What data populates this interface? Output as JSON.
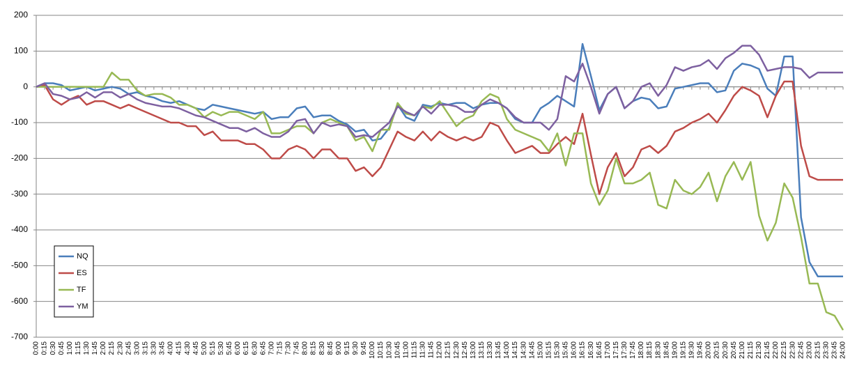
{
  "chart_data": {
    "type": "line",
    "categories": [
      "0:00",
      "0:15",
      "0:30",
      "0:45",
      "1:00",
      "1:15",
      "1:30",
      "1:45",
      "2:00",
      "2:15",
      "2:30",
      "2:45",
      "3:00",
      "3:15",
      "3:30",
      "3:45",
      "4:00",
      "4:15",
      "4:30",
      "4:45",
      "5:00",
      "5:15",
      "5:30",
      "5:45",
      "6:00",
      "6:15",
      "6:30",
      "6:45",
      "7:00",
      "7:15",
      "7:30",
      "7:45",
      "8:00",
      "8:15",
      "8:30",
      "8:45",
      "9:00",
      "9:15",
      "9:30",
      "9:45",
      "10:00",
      "10:15",
      "10:30",
      "10:45",
      "11:00",
      "11:15",
      "11:30",
      "11:45",
      "12:00",
      "12:15",
      "12:30",
      "12:45",
      "13:00",
      "13:15",
      "13:30",
      "13:45",
      "14:00",
      "14:15",
      "14:30",
      "14:45",
      "15:00",
      "15:15",
      "15:30",
      "15:45",
      "16:00",
      "16:15",
      "16:30",
      "16:45",
      "17:00",
      "17:15",
      "17:30",
      "17:45",
      "18:00",
      "18:15",
      "18:30",
      "18:45",
      "19:00",
      "19:15",
      "19:30",
      "19:45",
      "20:00",
      "20:15",
      "20:30",
      "20:45",
      "21:00",
      "21:15",
      "21:30",
      "21:45",
      "22:00",
      "22:15",
      "22:30",
      "22:45",
      "23:00",
      "23:15",
      "23:30",
      "23:45",
      "24:00"
    ],
    "series": [
      {
        "name": "NQ",
        "color": "#4a7ebb",
        "values": [
          0,
          10,
          10,
          5,
          -10,
          -5,
          0,
          -10,
          -5,
          0,
          -5,
          -20,
          -15,
          -25,
          -30,
          -40,
          -45,
          -40,
          -50,
          -60,
          -65,
          -50,
          -55,
          -60,
          -65,
          -70,
          -75,
          -70,
          -90,
          -85,
          -85,
          -60,
          -55,
          -85,
          -80,
          -80,
          -95,
          -105,
          -125,
          -120,
          -150,
          -145,
          -115,
          -50,
          -85,
          -95,
          -50,
          -55,
          -45,
          -50,
          -45,
          -45,
          -60,
          -50,
          -45,
          -45,
          -60,
          -90,
          -100,
          -100,
          -60,
          -45,
          -25,
          -40,
          -55,
          120,
          30,
          -65,
          -20,
          0,
          -60,
          -40,
          -30,
          -35,
          -60,
          -55,
          -5,
          0,
          5,
          10,
          10,
          -15,
          -10,
          45,
          65,
          60,
          50,
          -5,
          -25,
          85,
          85,
          -365,
          -490,
          -530,
          -530,
          -530,
          -530
        ]
      },
      {
        "name": "ES",
        "color": "#be4b48",
        "values": [
          0,
          5,
          -35,
          -50,
          -35,
          -25,
          -50,
          -40,
          -40,
          -50,
          -60,
          -50,
          -60,
          -70,
          -80,
          -90,
          -100,
          -100,
          -110,
          -110,
          -135,
          -125,
          -150,
          -150,
          -150,
          -160,
          -160,
          -175,
          -200,
          -200,
          -175,
          -165,
          -175,
          -200,
          -175,
          -175,
          -200,
          -200,
          -235,
          -225,
          -250,
          -225,
          -175,
          -125,
          -140,
          -150,
          -125,
          -150,
          -125,
          -140,
          -150,
          -140,
          -150,
          -140,
          -100,
          -110,
          -150,
          -185,
          -175,
          -165,
          -185,
          -185,
          -160,
          -140,
          -160,
          -75,
          -190,
          -300,
          -225,
          -185,
          -250,
          -225,
          -175,
          -165,
          -185,
          -165,
          -125,
          -115,
          -100,
          -90,
          -75,
          -100,
          -65,
          -25,
          0,
          -10,
          -25,
          -85,
          -25,
          15,
          15,
          -165,
          -250,
          -260,
          -260,
          -260,
          -260
        ]
      },
      {
        "name": "TF",
        "color": "#98b954",
        "values": [
          0,
          0,
          0,
          0,
          0,
          0,
          0,
          0,
          0,
          40,
          20,
          20,
          -10,
          -25,
          -20,
          -20,
          -30,
          -50,
          -50,
          -60,
          -85,
          -70,
          -80,
          -70,
          -70,
          -80,
          -90,
          -70,
          -130,
          -130,
          -120,
          -110,
          -110,
          -130,
          -100,
          -90,
          -100,
          -110,
          -150,
          -140,
          -180,
          -120,
          -120,
          -45,
          -75,
          -80,
          -55,
          -60,
          -40,
          -75,
          -110,
          -90,
          -80,
          -40,
          -20,
          -30,
          -90,
          -120,
          -130,
          -140,
          -150,
          -180,
          -130,
          -220,
          -130,
          -130,
          -270,
          -330,
          -290,
          -200,
          -270,
          -270,
          -260,
          -240,
          -330,
          -340,
          -260,
          -290,
          -300,
          -280,
          -240,
          -320,
          -250,
          -210,
          -260,
          -210,
          -360,
          -430,
          -380,
          -270,
          -310,
          -420,
          -550,
          -550,
          -630,
          -640,
          -680
        ]
      },
      {
        "name": "YM",
        "color": "#7d60a0",
        "values": [
          0,
          10,
          -20,
          -25,
          -35,
          -30,
          -15,
          -30,
          -15,
          -15,
          -30,
          -20,
          -35,
          -45,
          -50,
          -55,
          -55,
          -60,
          -70,
          -80,
          -85,
          -95,
          -105,
          -115,
          -115,
          -125,
          -115,
          -130,
          -140,
          -140,
          -125,
          -95,
          -90,
          -130,
          -100,
          -110,
          -105,
          -110,
          -140,
          -135,
          -140,
          -120,
          -100,
          -55,
          -70,
          -80,
          -55,
          -75,
          -50,
          -50,
          -55,
          -70,
          -70,
          -50,
          -35,
          -45,
          -60,
          -85,
          -100,
          -100,
          -100,
          -120,
          -90,
          30,
          15,
          65,
          0,
          -75,
          -20,
          0,
          -60,
          -40,
          0,
          10,
          -25,
          5,
          55,
          45,
          55,
          60,
          75,
          50,
          80,
          95,
          115,
          115,
          90,
          45,
          50,
          55,
          55,
          50,
          25,
          40,
          40,
          40,
          40
        ]
      }
    ],
    "ylim": [
      -700,
      200
    ],
    "yticks": [
      -700,
      -600,
      -500,
      -400,
      -300,
      -200,
      -100,
      0,
      100,
      200
    ],
    "grid": true
  }
}
